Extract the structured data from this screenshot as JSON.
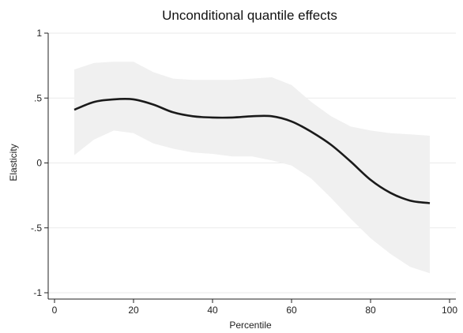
{
  "chart_data": {
    "type": "area",
    "title": "Unconditional quantile effects",
    "xlabel": "Percentile",
    "ylabel": "Elasticity",
    "xlim": [
      0,
      100
    ],
    "ylim": [
      -1,
      1
    ],
    "x_ticks": [
      {
        "value": 0,
        "label": "0"
      },
      {
        "value": 20,
        "label": "20"
      },
      {
        "value": 40,
        "label": "40"
      },
      {
        "value": 60,
        "label": "60"
      },
      {
        "value": 80,
        "label": "80"
      },
      {
        "value": 100,
        "label": "100"
      }
    ],
    "y_ticks": [
      {
        "value": 1,
        "label": "1"
      },
      {
        "value": 0.5,
        "label": ".5"
      },
      {
        "value": 0,
        "label": "0"
      },
      {
        "value": -0.5,
        "label": "-.5"
      },
      {
        "value": -1,
        "label": "-1"
      }
    ],
    "grid": "horizontal",
    "x": [
      5,
      10,
      15,
      20,
      25,
      30,
      35,
      40,
      45,
      50,
      55,
      60,
      65,
      70,
      75,
      80,
      85,
      90,
      95
    ],
    "series": [
      {
        "values": [
          0.41,
          0.47,
          0.49,
          0.49,
          0.45,
          0.39,
          0.36,
          0.35,
          0.35,
          0.36,
          0.36,
          0.32,
          0.24,
          0.14,
          0.01,
          -0.13,
          -0.23,
          -0.29,
          -0.31
        ],
        "color": "#1a1a1a"
      }
    ],
    "confidence_band": {
      "lower": [
        0.06,
        0.18,
        0.25,
        0.23,
        0.15,
        0.11,
        0.08,
        0.07,
        0.05,
        0.05,
        0.02,
        -0.02,
        -0.12,
        -0.27,
        -0.43,
        -0.58,
        -0.7,
        -0.8,
        -0.85
      ],
      "upper": [
        0.72,
        0.77,
        0.78,
        0.78,
        0.7,
        0.65,
        0.64,
        0.64,
        0.64,
        0.65,
        0.66,
        0.6,
        0.47,
        0.36,
        0.28,
        0.25,
        0.23,
        0.22,
        0.21
      ],
      "color": "#f0f0f0"
    }
  }
}
